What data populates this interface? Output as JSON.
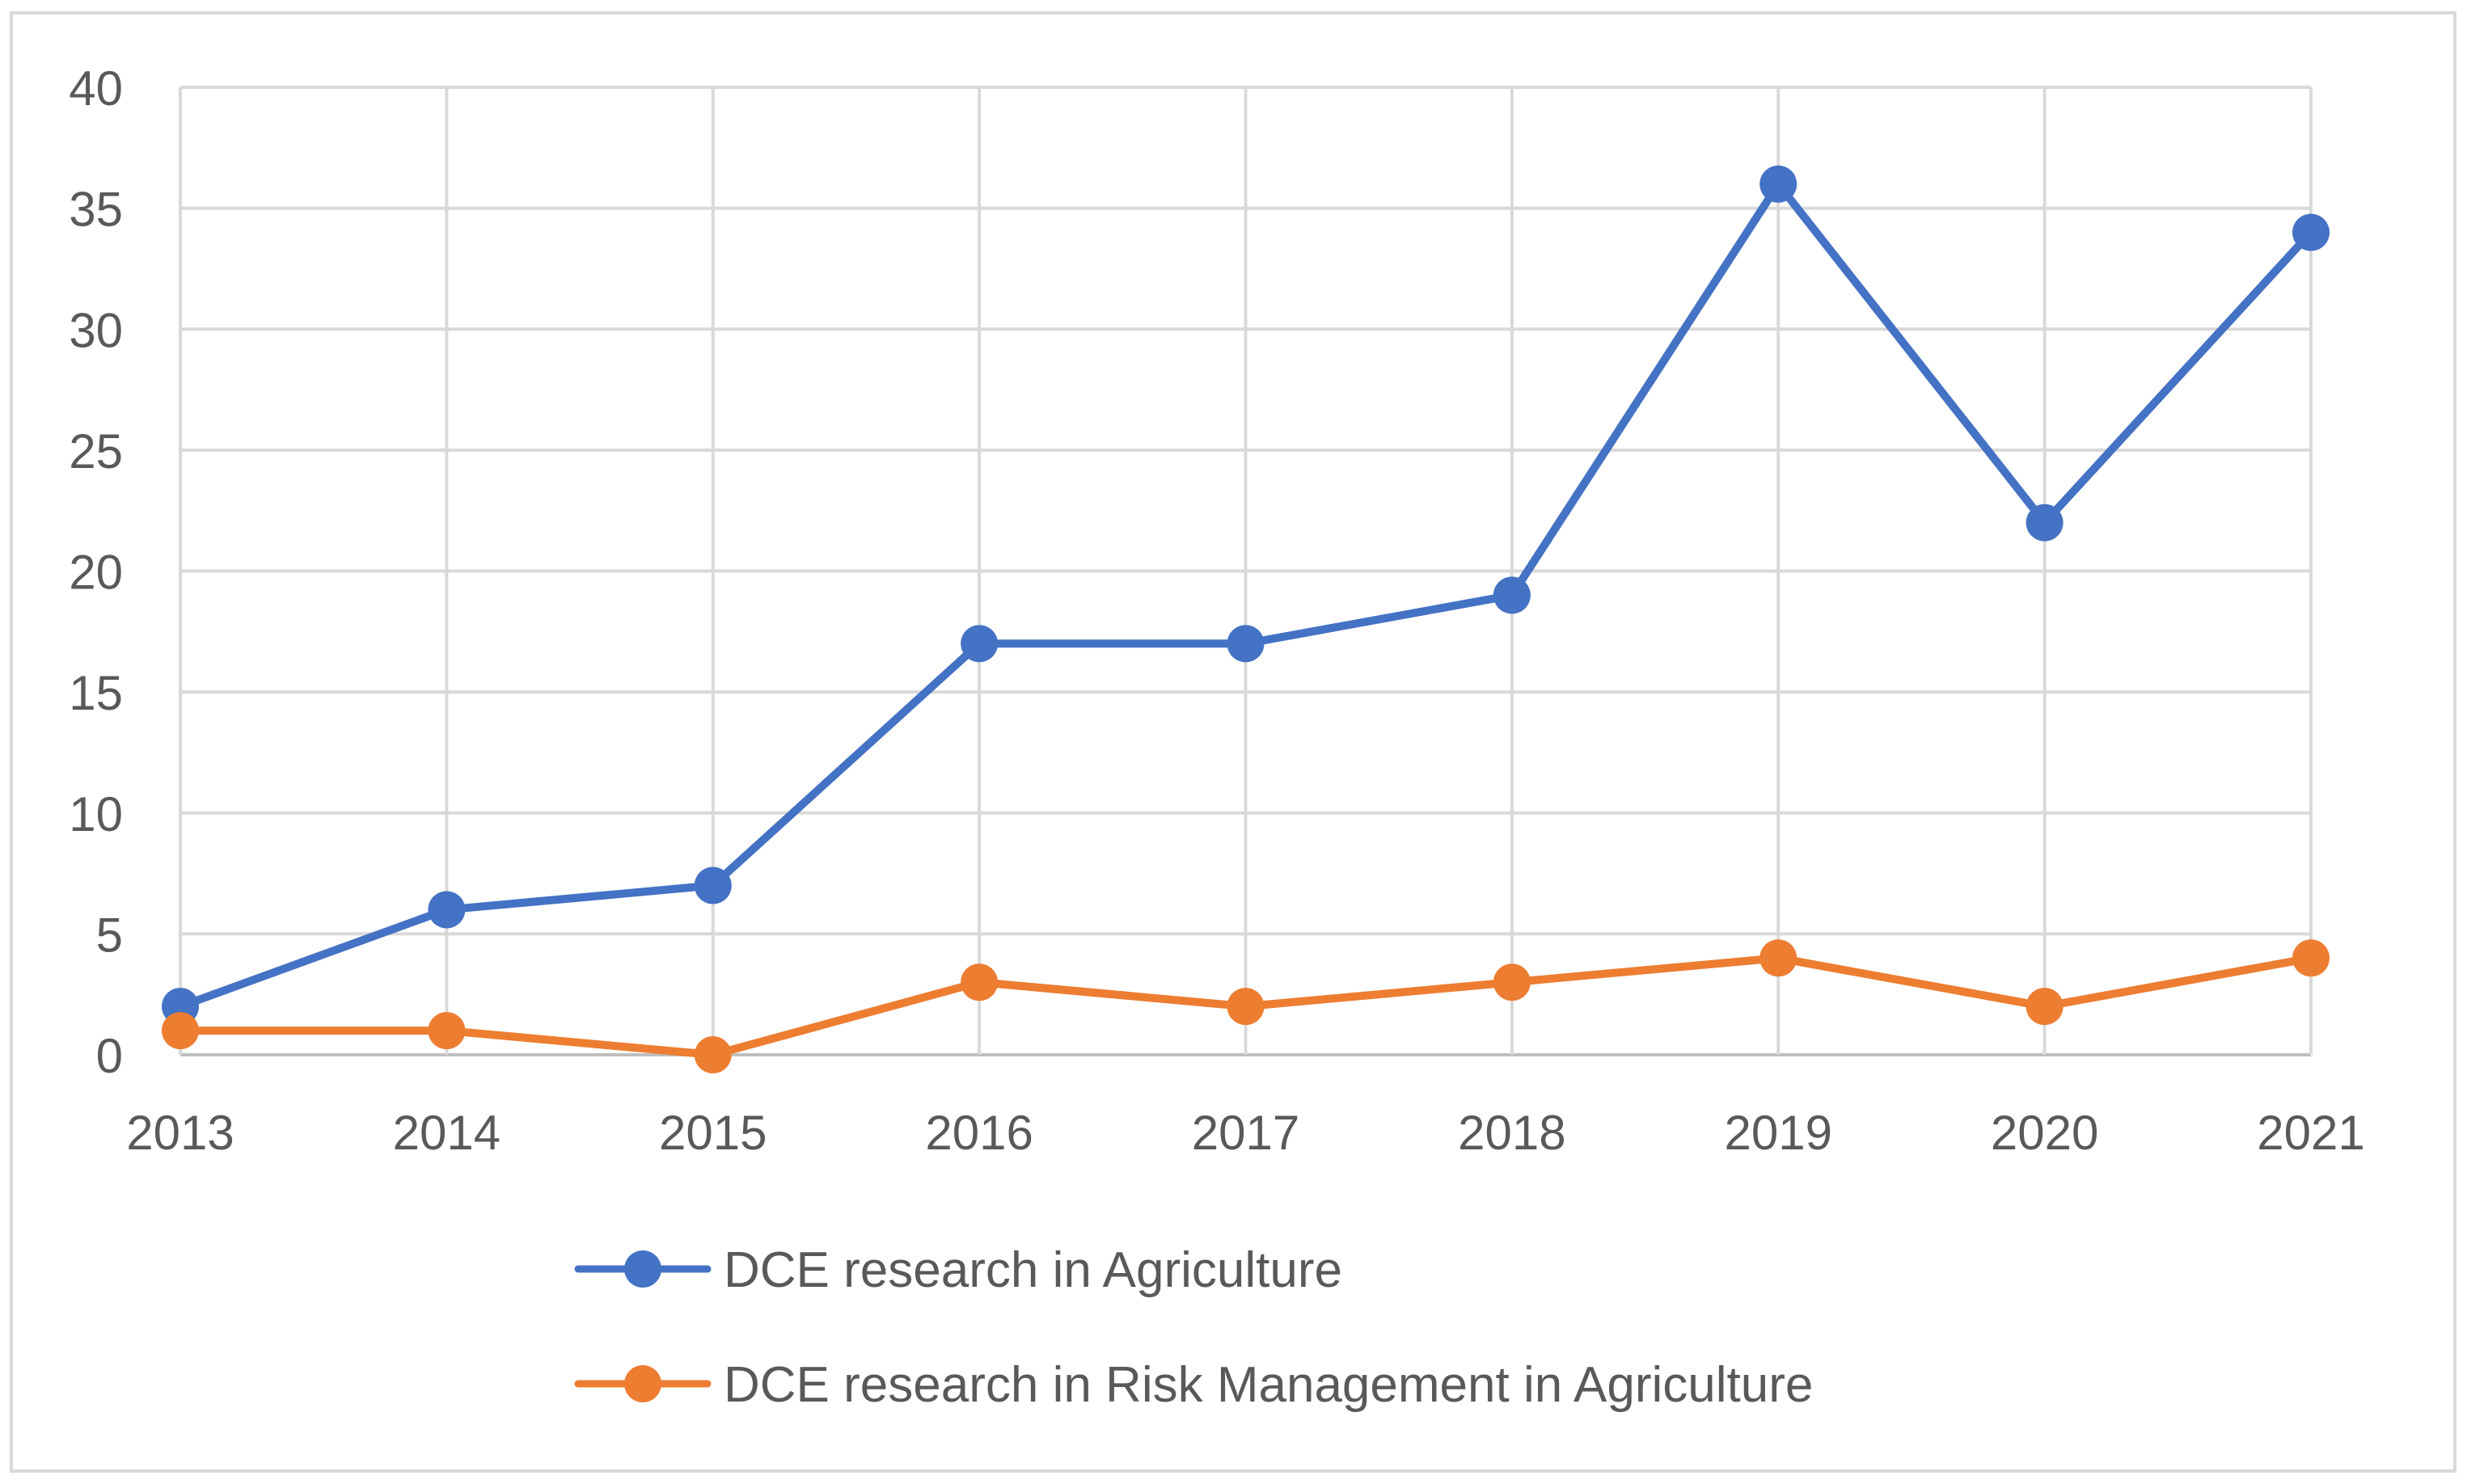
{
  "chart_data": {
    "type": "line",
    "title": "",
    "xlabel": "",
    "ylabel": "",
    "categories": [
      "2013",
      "2014",
      "2015",
      "2016",
      "2017",
      "2018",
      "2019",
      "2020",
      "2021"
    ],
    "ylim": [
      0,
      40
    ],
    "yticks": [
      0,
      5,
      10,
      15,
      20,
      25,
      30,
      35,
      40
    ],
    "ytick_labels": [
      "0",
      "5",
      "10",
      "15",
      "20",
      "25",
      "30",
      "35",
      "40"
    ],
    "grid": true,
    "legend_position": "bottom",
    "series": [
      {
        "name": "DCE research in Agriculture",
        "color": "#4472C4",
        "values": [
          2,
          6,
          7,
          17,
          17,
          19,
          36,
          22,
          34
        ]
      },
      {
        "name": "DCE research in Risk Management in Agriculture",
        "color": "#ED7D31",
        "values": [
          1,
          1,
          0,
          3,
          2,
          3,
          4,
          2,
          4
        ]
      }
    ]
  }
}
